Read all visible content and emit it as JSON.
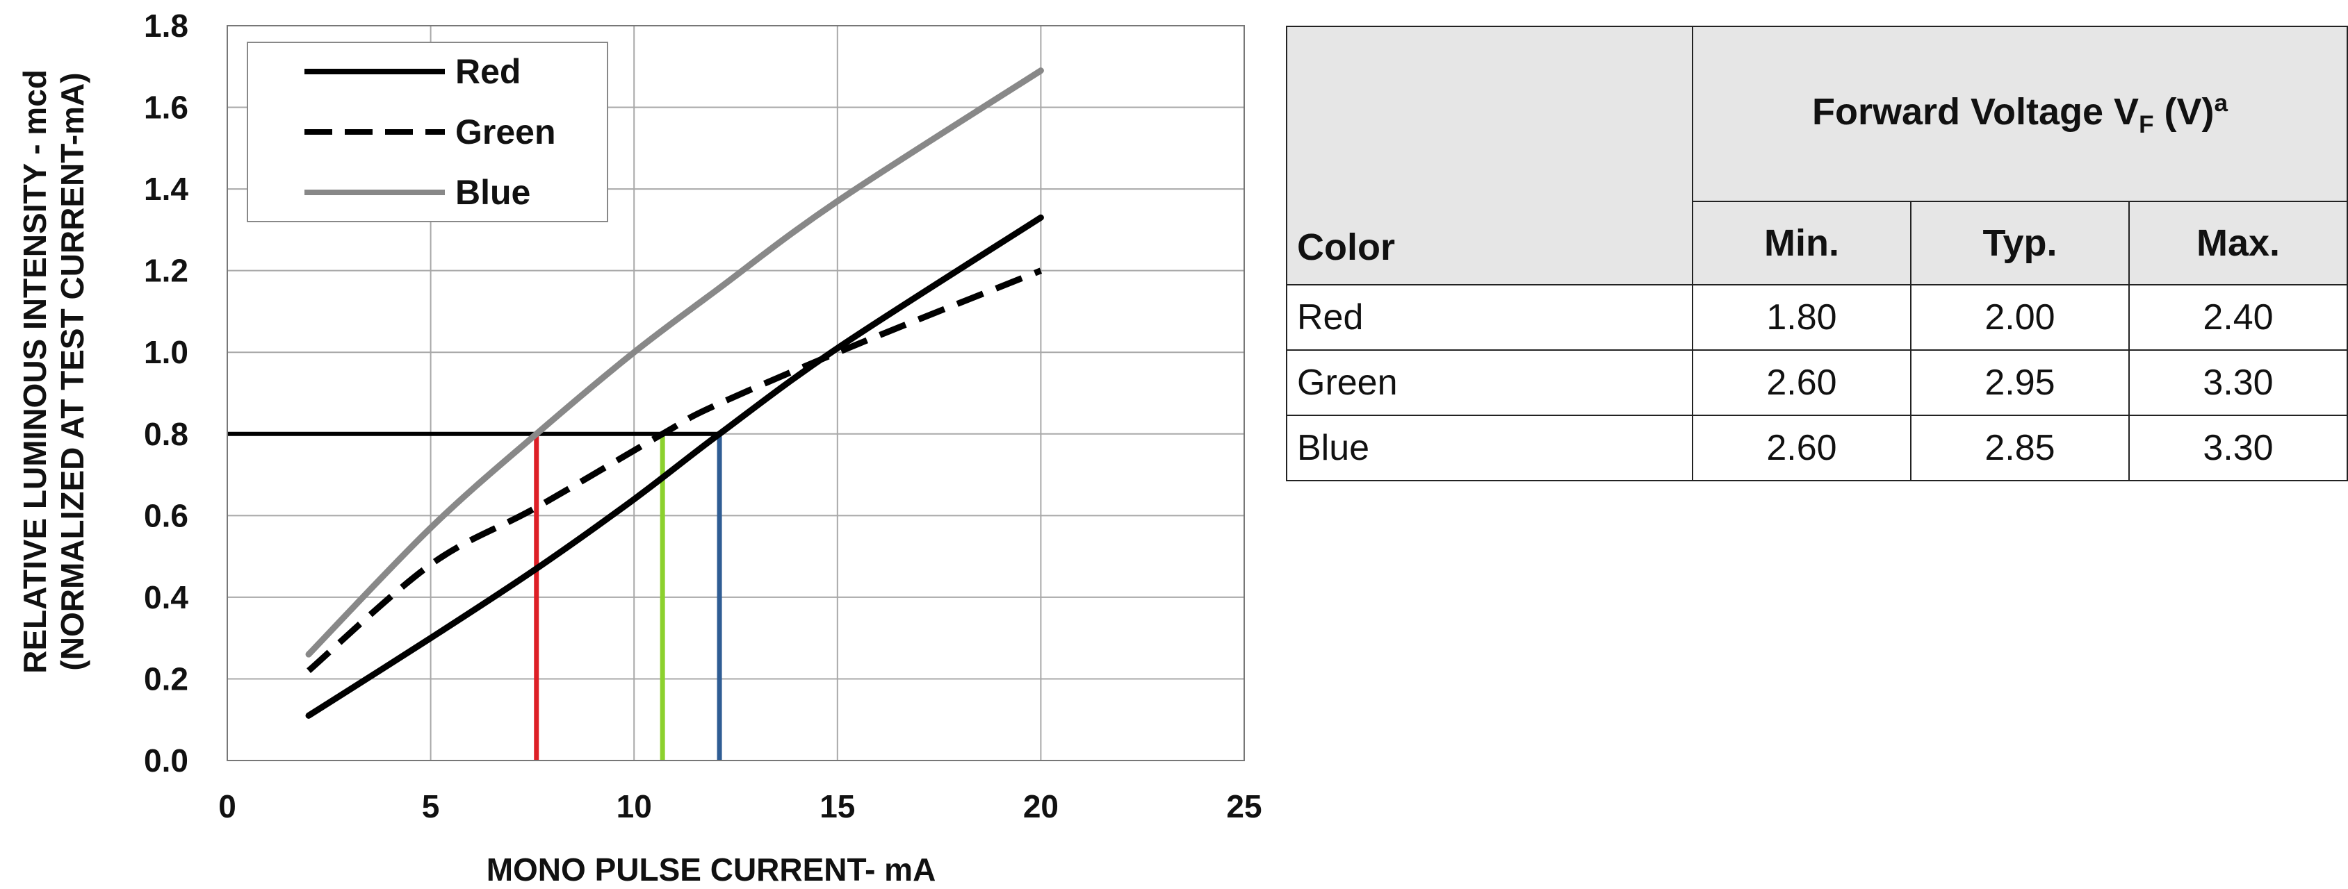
{
  "chart_data": {
    "type": "line",
    "x_label": "MONO PULSE CURRENT- mA",
    "y_label": [
      "RELATIVE LUMINOUS INTENSITY - mcd",
      "(NORMALIZED AT TEST CURRENT-mA)"
    ],
    "x_ticks": [
      "0",
      "5",
      "10",
      "15",
      "20",
      "25"
    ],
    "y_ticks": [
      "0.0",
      "0.2",
      "0.4",
      "0.6",
      "0.8",
      "1.0",
      "1.2",
      "1.4",
      "1.6",
      "1.8"
    ],
    "xlim": [
      0,
      25
    ],
    "ylim": [
      0,
      1.8
    ],
    "grid": true,
    "legend_position": "top-left",
    "series": [
      {
        "name": "Red",
        "color": "#000000",
        "dash": "solid",
        "x": [
          2,
          5,
          7.6,
          10,
          12.1,
          15,
          20
        ],
        "y": [
          0.11,
          0.3,
          0.47,
          0.64,
          0.8,
          1.01,
          1.33
        ]
      },
      {
        "name": "Green",
        "color": "#000000",
        "dash": "dashed",
        "x": [
          2,
          5,
          7.6,
          10.7,
          12,
          15.5,
          20
        ],
        "y": [
          0.22,
          0.48,
          0.62,
          0.8,
          0.87,
          1.02,
          1.2
        ]
      },
      {
        "name": "Blue",
        "color": "#888888",
        "dash": "solid",
        "x": [
          2,
          5,
          7.6,
          10,
          12,
          15,
          20
        ],
        "y": [
          0.26,
          0.57,
          0.8,
          1.0,
          1.15,
          1.37,
          1.69
        ]
      }
    ],
    "reference_lines": [
      {
        "kind": "horizontal",
        "y": 0.8,
        "x_from": 0,
        "x_to": 12.1,
        "color": "#000000"
      },
      {
        "kind": "vertical",
        "x": 7.6,
        "y_from": 0,
        "y_to": 0.8,
        "color": "#dd1f26"
      },
      {
        "kind": "vertical",
        "x": 10.7,
        "y_from": 0,
        "y_to": 0.8,
        "color": "#8cd12e"
      },
      {
        "kind": "vertical",
        "x": 12.1,
        "y_from": 0,
        "y_to": 0.8,
        "color": "#2f5d94"
      }
    ]
  },
  "table": {
    "header_group": {
      "text": "Forward Voltage V",
      "sub": "F",
      "suffix": " (V)",
      "sup": "a"
    },
    "color_header": "Color",
    "columns": [
      "Min.",
      "Typ.",
      "Max."
    ],
    "rows": [
      {
        "color": "Red",
        "min": "1.80",
        "typ": "2.00",
        "max": "2.40"
      },
      {
        "color": "Green",
        "min": "2.60",
        "typ": "2.95",
        "max": "3.30"
      },
      {
        "color": "Blue",
        "min": "2.60",
        "typ": "2.85",
        "max": "3.30"
      }
    ]
  }
}
